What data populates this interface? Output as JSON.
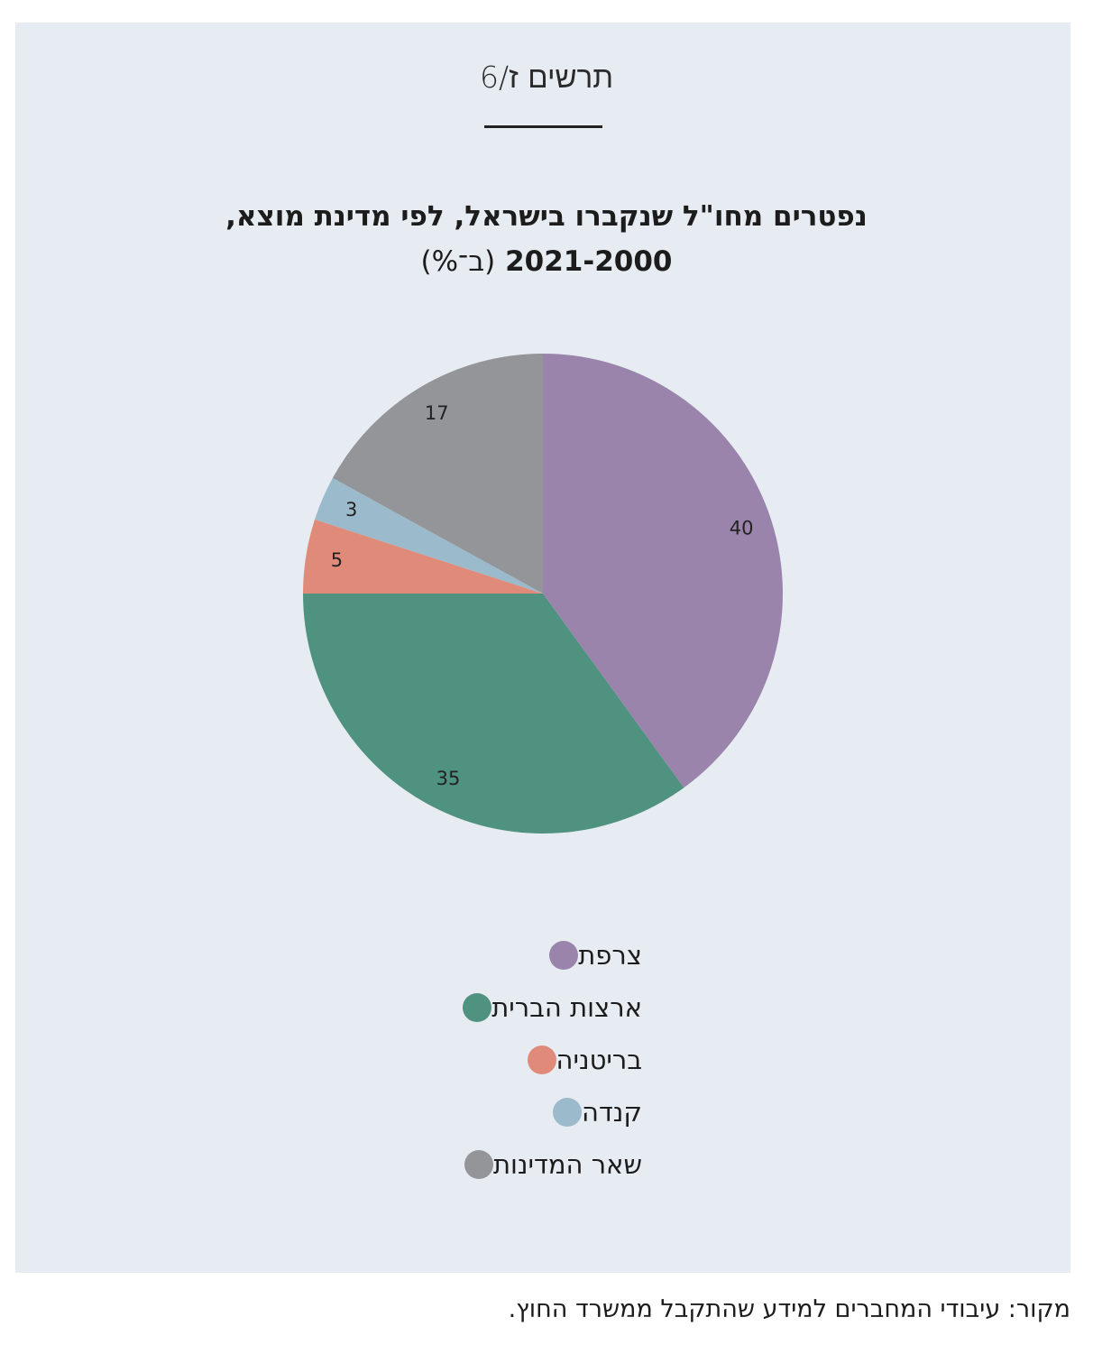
{
  "figure": {
    "label": "תרשים ז/6",
    "title_line1": "נפטרים מחו\"ל שנקברו בישראל, לפי מדינת מוצא,",
    "title_line2_years": "2021-2000",
    "title_line2_unit": "(ב־%)"
  },
  "source": "מקור: עיבודי המחברים למידע שהתקבל ממשרד החוץ.",
  "chart_data": {
    "type": "pie",
    "title": "נפטרים מחו\"ל שנקברו בישראל, לפי מדינת מוצא, 2021-2000 (ב־%)",
    "start": "12 o'clock",
    "direction": "clockwise",
    "legend_placement": "bottom",
    "slices": [
      {
        "label": "צרפת",
        "value": 40,
        "color": "#9a84ac"
      },
      {
        "label": "ארצות הברית",
        "value": 35,
        "color": "#4f927f"
      },
      {
        "label": "בריטניה",
        "value": 5,
        "color": "#e08b7a"
      },
      {
        "label": "קנדה",
        "value": 3,
        "color": "#9bbacb"
      },
      {
        "label": "שאר המדינות",
        "value": 17,
        "color": "#939598"
      }
    ]
  }
}
